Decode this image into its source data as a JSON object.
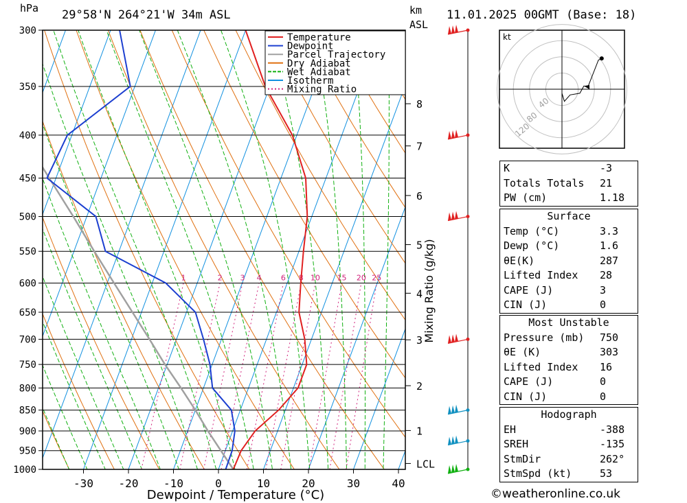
{
  "header": {
    "location": "29°58'N  264°21'W  34m  ASL",
    "datetime": "11.01.2025  00GMT  (Base: 18)",
    "pressure_unit": "hPa",
    "height_unit": "km",
    "height_unit_sub": "ASL"
  },
  "chart_data": {
    "type": "line",
    "chart_kind": "skew-T log-P",
    "xlabel": "Dewpoint / Temperature (°C)",
    "ylabel_right": "Mixing Ratio (g/kg)",
    "xlim": [
      -40,
      40
    ],
    "ylim": [
      1000,
      300
    ],
    "y_scale": "log",
    "x_ticks": [
      -30,
      -20,
      -10,
      0,
      10,
      20,
      30,
      40
    ],
    "pressure_ticks": [
      300,
      350,
      400,
      450,
      500,
      550,
      600,
      650,
      700,
      750,
      800,
      850,
      900,
      950,
      1000
    ],
    "height_ticks": [
      {
        "label": "8",
        "p": 367
      },
      {
        "label": "7",
        "p": 412
      },
      {
        "label": "6",
        "p": 472
      },
      {
        "label": "5",
        "p": 540
      },
      {
        "label": "4",
        "p": 617
      },
      {
        "label": "3",
        "p": 701
      },
      {
        "label": "2",
        "p": 795
      },
      {
        "label": "1",
        "p": 899
      },
      {
        "label": "LCL",
        "p": 984
      }
    ],
    "mixing_ratio_labels": [
      "1",
      "2",
      "3",
      "4",
      "6",
      "8",
      "10",
      "15",
      "20",
      "25"
    ],
    "legend": [
      {
        "name": "Temperature",
        "color": "#e02020"
      },
      {
        "name": "Dewpoint",
        "color": "#1c3fd0"
      },
      {
        "name": "Parcel Trajectory",
        "color": "#a0a0a0"
      },
      {
        "name": "Dry Adiabat",
        "color": "#e07010"
      },
      {
        "name": "Wet Adiabat",
        "color": "#10b010"
      },
      {
        "name": "Isotherm",
        "color": "#1090e0"
      },
      {
        "name": "Mixing Ratio",
        "color": "#d0207a"
      }
    ],
    "temperature": [
      [
        1000,
        3.3
      ],
      [
        950,
        3.5
      ],
      [
        900,
        5.0
      ],
      [
        850,
        8.5
      ],
      [
        800,
        11.0
      ],
      [
        750,
        11.0
      ],
      [
        700,
        8.5
      ],
      [
        650,
        5.0
      ],
      [
        600,
        3.0
      ],
      [
        550,
        1.0
      ],
      [
        500,
        -1.0
      ],
      [
        450,
        -4.5
      ],
      [
        400,
        -11.0
      ],
      [
        350,
        -21.0
      ],
      [
        300,
        -30.0
      ]
    ],
    "dewpoint": [
      [
        1000,
        1.6
      ],
      [
        950,
        1.5
      ],
      [
        900,
        0.5
      ],
      [
        850,
        -2.0
      ],
      [
        800,
        -8.0
      ],
      [
        750,
        -10.5
      ],
      [
        700,
        -14.0
      ],
      [
        650,
        -18.0
      ],
      [
        600,
        -27.0
      ],
      [
        550,
        -43.0
      ],
      [
        500,
        -48.0
      ],
      [
        450,
        -62.0
      ],
      [
        400,
        -61.0
      ],
      [
        350,
        -51.0
      ],
      [
        300,
        -58.0
      ]
    ],
    "parcel": [
      [
        1000,
        3.3
      ],
      [
        950,
        -1.0
      ],
      [
        900,
        -5.5
      ],
      [
        850,
        -10.0
      ],
      [
        800,
        -15.0
      ],
      [
        750,
        -20.5
      ],
      [
        700,
        -26.0
      ],
      [
        650,
        -32.0
      ],
      [
        600,
        -38.5
      ],
      [
        550,
        -45.5
      ],
      [
        500,
        -53.0
      ],
      [
        450,
        -61.5
      ],
      [
        400,
        -71.0
      ],
      [
        350,
        -82.0
      ],
      [
        300,
        -94.0
      ]
    ],
    "wind_barbs": [
      {
        "p": 300,
        "color": "#e02020"
      },
      {
        "p": 400,
        "color": "#e02020"
      },
      {
        "p": 500,
        "color": "#e02020"
      },
      {
        "p": 700,
        "color": "#e02020"
      },
      {
        "p": 850,
        "color": "#1090c0"
      },
      {
        "p": 925,
        "color": "#1090c0"
      },
      {
        "p": 1000,
        "color": "#10b010"
      }
    ]
  },
  "hodograph": {
    "unit_label": "kt",
    "ring_labels": [
      "40",
      "80",
      "120"
    ],
    "track_kt": [
      [
        0,
        -5
      ],
      [
        3,
        -15
      ],
      [
        10,
        -7
      ],
      [
        22,
        -5
      ],
      [
        27,
        4
      ],
      [
        32,
        3
      ],
      [
        45,
        36
      ],
      [
        49,
        38
      ]
    ]
  },
  "indices": [
    {
      "key": "K",
      "value": "-3"
    },
    {
      "key": "Totals Totals",
      "value": "21"
    },
    {
      "key": "PW (cm)",
      "value": "1.18"
    }
  ],
  "surface": {
    "title": "Surface",
    "rows": [
      {
        "key": "Temp (°C)",
        "value": "3.3"
      },
      {
        "key": "Dewp (°C)",
        "value": "1.6"
      },
      {
        "key": "θE(K)",
        "value": "287"
      },
      {
        "key": "Lifted Index",
        "value": "28"
      },
      {
        "key": "CAPE (J)",
        "value": "3"
      },
      {
        "key": "CIN (J)",
        "value": "0"
      }
    ]
  },
  "most_unstable": {
    "title": "Most Unstable",
    "rows": [
      {
        "key": "Pressure (mb)",
        "value": "750"
      },
      {
        "key": "θE (K)",
        "value": "303"
      },
      {
        "key": "Lifted Index",
        "value": "16"
      },
      {
        "key": "CAPE (J)",
        "value": "0"
      },
      {
        "key": "CIN (J)",
        "value": "0"
      }
    ]
  },
  "hodo_stats": {
    "title": "Hodograph",
    "rows": [
      {
        "key": "EH",
        "value": "-388"
      },
      {
        "key": "SREH",
        "value": "-135"
      },
      {
        "key": "StmDir",
        "value": "262°"
      },
      {
        "key": "StmSpd (kt)",
        "value": "53"
      }
    ]
  },
  "credit": "©weatheronline.co.uk"
}
